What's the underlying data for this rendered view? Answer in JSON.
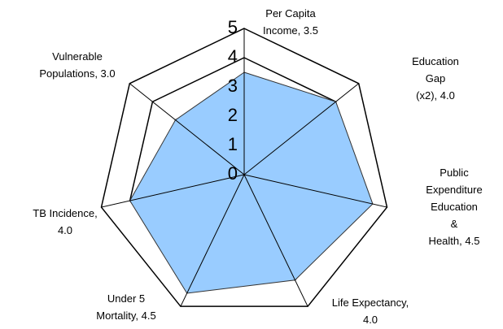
{
  "chart_data": {
    "type": "radar",
    "categories": [
      "Per Capita\nIncome, 3.5",
      "Education Gap\n(x2), 4.0",
      "Public\nExpenditure\nEducation &\nHealth, 4.5",
      "Life Expectancy,\n4.0",
      "Under 5\nMortality, 4.5",
      "TB Incidence,\n4.0",
      "Vulnerable\nPopulations, 3.0"
    ],
    "values": [
      3.5,
      4.0,
      4.5,
      4.0,
      4.5,
      4.0,
      3.0
    ],
    "color": "#99ccff",
    "rlim": [
      0,
      5
    ],
    "rticks": [
      0,
      1,
      2,
      3,
      4,
      5
    ],
    "grid": true
  }
}
